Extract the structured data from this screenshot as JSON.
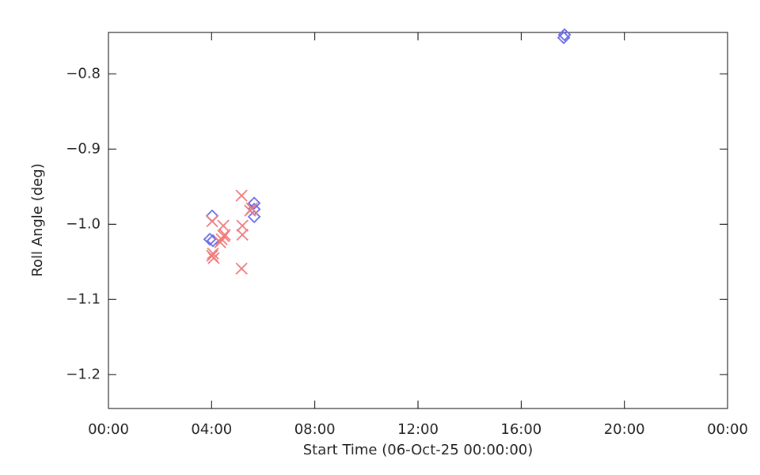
{
  "chart_data": {
    "type": "scatter",
    "x_label": "Start Time (06-Oct-25 00:00:00)",
    "y_label": "Roll Angle (deg)",
    "xlim": [
      0,
      24
    ],
    "xticks": [
      {
        "value": 0,
        "label": "00:00"
      },
      {
        "value": 4,
        "label": "04:00"
      },
      {
        "value": 8,
        "label": "08:00"
      },
      {
        "value": 12,
        "label": "12:00"
      },
      {
        "value": 16,
        "label": "16:00"
      },
      {
        "value": 20,
        "label": "20:00"
      },
      {
        "value": 24,
        "label": "00:00"
      }
    ],
    "ylim": [
      -1.245,
      -0.745
    ],
    "yticks": [
      {
        "value": -0.8,
        "label": "−0.8"
      },
      {
        "value": -0.9,
        "label": "−0.9"
      },
      {
        "value": -1.0,
        "label": "−1.0"
      },
      {
        "value": -1.1,
        "label": "−1.1"
      },
      {
        "value": -1.2,
        "label": "−1.2"
      }
    ],
    "series": [
      {
        "color": "#6a6ae8",
        "marker": "diamond",
        "x": [
          4.02,
          3.93,
          4.05,
          5.65,
          5.65,
          5.65,
          17.65,
          17.68
        ],
        "y": [
          -0.989,
          -1.02,
          -1.022,
          -0.972,
          -0.98,
          -0.99,
          -0.752,
          -0.748
        ]
      },
      {
        "color": "#f07a7a",
        "marker": "cross",
        "x": [
          4.02,
          4.05,
          4.08,
          4.02,
          4.45,
          4.48,
          4.39,
          4.51,
          4.33,
          5.16,
          5.19,
          5.19,
          5.16,
          5.49,
          5.56
        ],
        "y": [
          -0.996,
          -1.039,
          -1.045,
          -1.042,
          -1.002,
          -1.016,
          -1.02,
          -1.014,
          -1.024,
          -0.962,
          -1.002,
          -1.014,
          -1.059,
          -0.982,
          -0.979
        ]
      }
    ]
  }
}
